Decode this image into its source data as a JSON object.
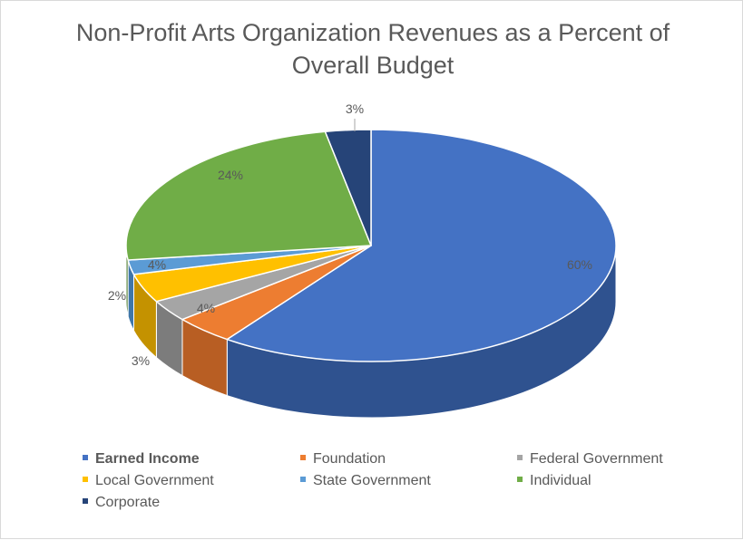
{
  "chart_data": {
    "type": "pie",
    "title": "Non-Profit Arts Organization Revenues as a Percent of Overall Budget",
    "slices": [
      {
        "name": "Earned Income",
        "value": 60,
        "label": "60%",
        "color": "#4472C4",
        "side": "#2F528F"
      },
      {
        "name": "Foundation",
        "value": 4,
        "label": "4%",
        "color": "#ED7D31",
        "side": "#B85E23"
      },
      {
        "name": "Federal Government",
        "value": 3,
        "label": "3%",
        "color": "#A5A5A5",
        "side": "#7C7C7C"
      },
      {
        "name": "Local Government",
        "value": 4,
        "label": "4%",
        "color": "#FFC000",
        "side": "#C49200"
      },
      {
        "name": "State Government",
        "value": 2,
        "label": "2%",
        "color": "#5B9BD5",
        "side": "#3F76A8"
      },
      {
        "name": "Individual",
        "value": 24,
        "label": "24%",
        "color": "#70AD47",
        "side": "#548235"
      },
      {
        "name": "Corporate",
        "value": 3,
        "label": "3%",
        "color": "#264478",
        "side": "#1B3157"
      }
    ],
    "legend": {
      "position": "bottom",
      "highlighted": "Earned Income"
    }
  }
}
